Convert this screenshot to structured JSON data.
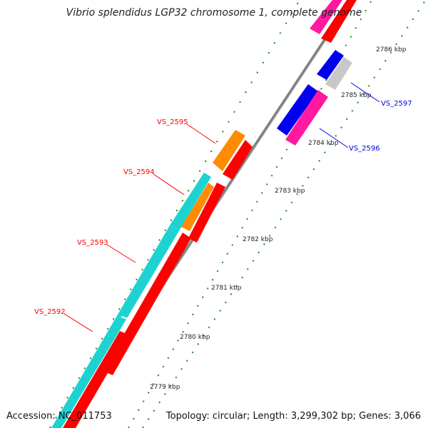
{
  "title": "Vibrio splendidus LGP32 chromosome 1, complete genome",
  "footer": {
    "accession": "Accession: NC_011753",
    "summary": "Topology: circular; Length: 3,299,302 bp; Genes: 3,066"
  },
  "ticks": [
    "2779 kbp",
    "2780 kbp",
    "2781 kbp",
    "2782 kbp",
    "2783 kbp",
    "2784 kbp",
    "2785 kbp",
    "2786 kbp"
  ],
  "gene_labels": [
    {
      "text": "VS_2592",
      "color": "#ff0000"
    },
    {
      "text": "VS_2593",
      "color": "#ff0000"
    },
    {
      "text": "VS_2594",
      "color": "#ff0000"
    },
    {
      "text": "VS_2595",
      "color": "#ff0000"
    },
    {
      "text": "VS_2596",
      "color": "#0000dd"
    },
    {
      "text": "VS_2597",
      "color": "#0000dd"
    }
  ],
  "colors": {
    "backbone": "#808080",
    "tick_mark": "#1a8a1a",
    "cds_red": "#ff0000",
    "cds_cyan": "#1ed2d2",
    "cds_orange": "#ff8c00",
    "cds_blue": "#0000ee",
    "cds_pink": "#ff1aa0",
    "cds_gray": "#c8c8c8"
  }
}
